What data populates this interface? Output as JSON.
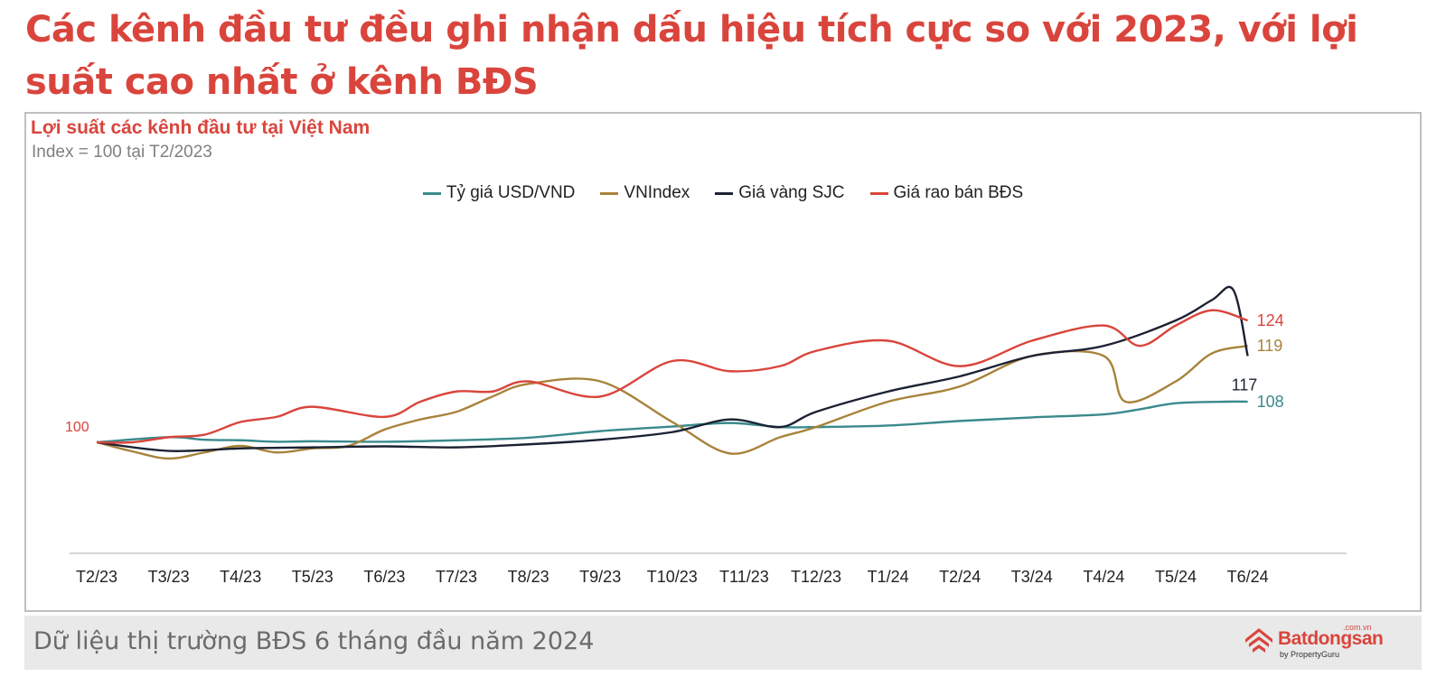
{
  "headline": "Các kênh đầu tư đều ghi nhận dấu hiệu tích cực so với 2023, với lợi suất cao nhất ở kênh BĐS",
  "footer": "Dữ liệu thị trường BĐS 6 tháng đầu năm 2024",
  "brand": {
    "name": "Batdongsan",
    "domain": ".com.vn",
    "tagline": "by PropertyGuru"
  },
  "colors": {
    "usd": "#3a8a8c",
    "vnindex": "#a8833a",
    "gold": "#1c2233",
    "bds": "#d9453c",
    "accent": "#d9453c"
  },
  "chart_data": {
    "type": "line",
    "title": "Lợi suất các kênh đầu tư tại Việt Nam",
    "subtitle": "Index = 100 tại T2/2023",
    "legend_position": "top-center",
    "grid": false,
    "ylim": [
      80,
      150
    ],
    "categories": [
      "T2/23",
      "T3/23",
      "T4/23",
      "T5/23",
      "T6/23",
      "T7/23",
      "T8/23",
      "T9/23",
      "T10/23",
      "T11/23",
      "T12/23",
      "T1/24",
      "T2/24",
      "T3/24",
      "T4/24",
      "T5/24",
      "T6/24"
    ],
    "start_label": "100",
    "series": [
      {
        "name": "Tỷ giá USD/VND",
        "color_key": "usd",
        "end_label": "108",
        "values": [
          [
            0,
            100
          ],
          [
            1,
            101
          ],
          [
            1.5,
            100.5
          ],
          [
            2,
            100.4
          ],
          [
            2.5,
            100.1
          ],
          [
            3,
            100.2
          ],
          [
            4,
            100.1
          ],
          [
            5,
            100.4
          ],
          [
            6,
            100.9
          ],
          [
            7,
            102.2
          ],
          [
            8,
            103.1
          ],
          [
            8.8,
            103.8
          ],
          [
            9.5,
            103
          ],
          [
            10,
            103
          ],
          [
            11,
            103.3
          ],
          [
            12,
            104.2
          ],
          [
            13,
            104.9
          ],
          [
            14,
            105.5
          ],
          [
            14.5,
            106.5
          ],
          [
            15,
            107.7
          ],
          [
            15.7,
            108
          ],
          [
            16,
            108
          ]
        ]
      },
      {
        "name": "VNIndex",
        "color_key": "vnindex",
        "end_label": "119",
        "values": [
          [
            0,
            100
          ],
          [
            0.5,
            98.2
          ],
          [
            1,
            96.8
          ],
          [
            1.5,
            98
          ],
          [
            2,
            99.3
          ],
          [
            2.5,
            98
          ],
          [
            3,
            98.8
          ],
          [
            3.5,
            99.3
          ],
          [
            4,
            102.5
          ],
          [
            4.5,
            104.5
          ],
          [
            5,
            106
          ],
          [
            5.5,
            109
          ],
          [
            6,
            111.5
          ],
          [
            7,
            112
          ],
          [
            8,
            104
          ],
          [
            8.8,
            97.8
          ],
          [
            9.5,
            101
          ],
          [
            10,
            103
          ],
          [
            11,
            108
          ],
          [
            12,
            111
          ],
          [
            13,
            117
          ],
          [
            14,
            117
          ],
          [
            14.3,
            108
          ],
          [
            15,
            112
          ],
          [
            15.5,
            117.5
          ],
          [
            16,
            119
          ]
        ]
      },
      {
        "name": "Giá vàng SJC",
        "color_key": "gold",
        "end_label": "117",
        "values": [
          [
            0,
            100
          ],
          [
            1,
            98.3
          ],
          [
            2,
            98.8
          ],
          [
            3,
            99
          ],
          [
            4,
            99.2
          ],
          [
            5,
            99
          ],
          [
            6,
            99.6
          ],
          [
            7,
            100.5
          ],
          [
            8,
            102
          ],
          [
            8.8,
            104.5
          ],
          [
            9.5,
            103
          ],
          [
            10,
            106
          ],
          [
            11,
            110
          ],
          [
            12,
            113
          ],
          [
            13,
            117
          ],
          [
            14,
            119
          ],
          [
            15,
            124
          ],
          [
            15.5,
            128
          ],
          [
            15.8,
            130
          ],
          [
            16,
            117
          ]
        ]
      },
      {
        "name": "Giá rao bán BĐS",
        "color_key": "bds",
        "end_label": "124",
        "values": [
          [
            0,
            100
          ],
          [
            0.5,
            100
          ],
          [
            1,
            101
          ],
          [
            1.5,
            101.5
          ],
          [
            2,
            104
          ],
          [
            2.5,
            105
          ],
          [
            3,
            107
          ],
          [
            4,
            105
          ],
          [
            4.5,
            108
          ],
          [
            5,
            110
          ],
          [
            5.5,
            110
          ],
          [
            6,
            112
          ],
          [
            7,
            109
          ],
          [
            8,
            116
          ],
          [
            8.8,
            114
          ],
          [
            9.5,
            115
          ],
          [
            10,
            118
          ],
          [
            11,
            120
          ],
          [
            12,
            115
          ],
          [
            13,
            120
          ],
          [
            14,
            123
          ],
          [
            14.5,
            119
          ],
          [
            15,
            123
          ],
          [
            15.5,
            126
          ],
          [
            16,
            124
          ]
        ]
      }
    ]
  }
}
